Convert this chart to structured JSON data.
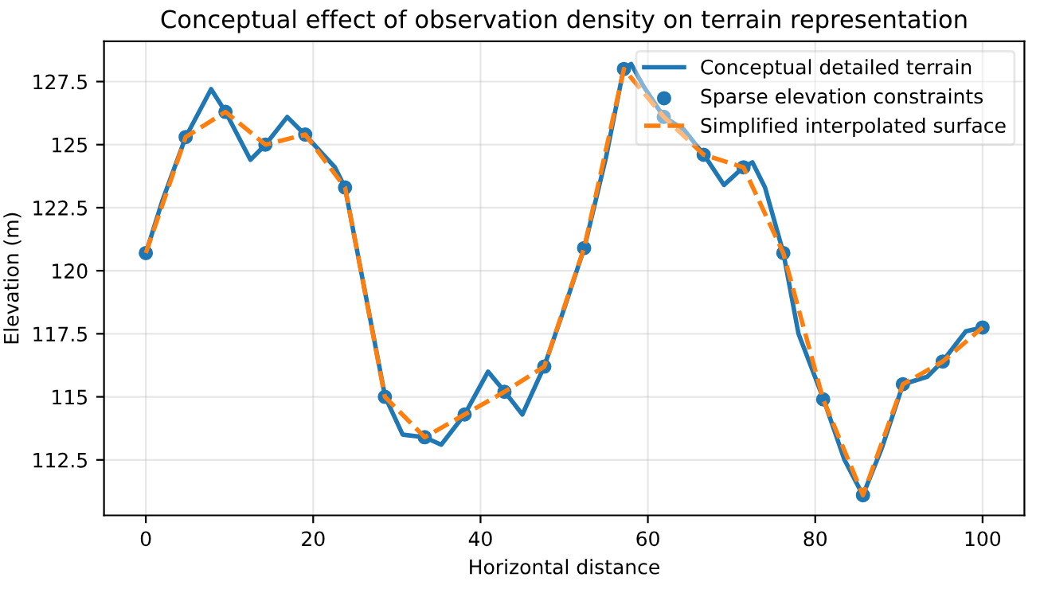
{
  "chart_data": {
    "type": "line",
    "title": "Conceptual effect of observation density on terrain representation",
    "xlabel": "Horizontal distance",
    "ylabel": "Elevation (m)",
    "xlim": [
      -5,
      105
    ],
    "xticks": [
      0,
      20,
      40,
      60,
      80,
      100
    ],
    "ylim": [
      110.3,
      129.1
    ],
    "yticks": [
      112.5,
      115.0,
      117.5,
      120.0,
      122.5,
      125.0,
      127.5
    ],
    "grid": true,
    "legend": "top right",
    "series": [
      {
        "name": "Conceptual detailed terrain",
        "color": "#1f77b4",
        "line_style": "solid",
        "marker": "none",
        "x": [
          0,
          2,
          4.76,
          7.8,
          9.52,
          12.5,
          14.3,
          16.9,
          19.0,
          22.6,
          23.8,
          26,
          28.6,
          30.7,
          33.3,
          35.3,
          38.1,
          40.9,
          42.9,
          45.0,
          47.6,
          50,
          52.4,
          55,
          57.1,
          58.0,
          59.5,
          61.9,
          64.3,
          66.7,
          69.1,
          71.4,
          72.5,
          74,
          76.2,
          78,
          81.0,
          83.5,
          85.7,
          88,
          90.5,
          93.4,
          95.2,
          98,
          100
        ],
        "values": [
          120.7,
          122.8,
          125.3,
          127.2,
          126.3,
          124.4,
          125.0,
          126.1,
          125.4,
          124.1,
          123.3,
          119.5,
          115.0,
          113.5,
          113.4,
          113.1,
          114.3,
          116.0,
          115.2,
          114.3,
          116.2,
          118.5,
          120.9,
          124.5,
          128.0,
          128.2,
          127.3,
          126.1,
          125.6,
          124.6,
          123.4,
          124.1,
          124.3,
          123.3,
          120.7,
          117.5,
          114.9,
          112.5,
          111.1,
          113.0,
          115.5,
          115.8,
          116.4,
          117.6,
          117.75
        ]
      },
      {
        "name": "Sparse elevation constraints",
        "type": "scatter",
        "color": "#1f77b4",
        "marker": "circle",
        "x": [
          0,
          4.76,
          9.52,
          14.29,
          19.05,
          23.81,
          28.57,
          33.33,
          38.1,
          42.86,
          47.62,
          52.38,
          57.14,
          61.9,
          66.67,
          71.43,
          76.19,
          80.95,
          85.71,
          90.48,
          95.24,
          100
        ],
        "values": [
          120.7,
          125.3,
          126.3,
          125.0,
          125.4,
          123.3,
          115.0,
          113.4,
          114.3,
          115.2,
          116.2,
          120.9,
          128.0,
          126.1,
          124.6,
          124.1,
          120.7,
          114.9,
          111.1,
          115.5,
          116.4,
          117.75
        ]
      },
      {
        "name": "Simplified interpolated surface",
        "color": "#ff7f0e",
        "line_style": "dashed",
        "marker": "none",
        "x": [
          0,
          4.76,
          9.52,
          14.29,
          19.05,
          23.81,
          28.57,
          33.33,
          38.1,
          42.86,
          47.62,
          52.38,
          57.14,
          61.9,
          66.67,
          71.43,
          76.19,
          80.95,
          85.71,
          90.48,
          95.24,
          100
        ],
        "values": [
          120.7,
          125.3,
          126.3,
          125.0,
          125.4,
          123.3,
          115.0,
          113.4,
          114.3,
          115.2,
          116.2,
          120.9,
          128.0,
          126.1,
          124.6,
          124.1,
          120.7,
          114.9,
          111.1,
          115.5,
          116.4,
          117.75
        ]
      }
    ]
  }
}
